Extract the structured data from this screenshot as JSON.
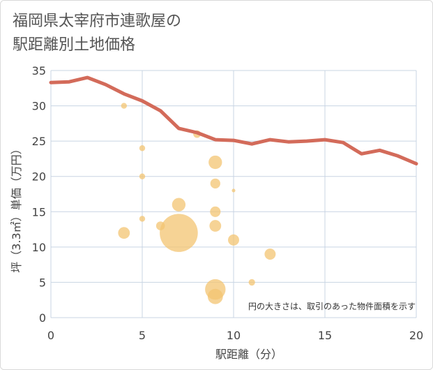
{
  "title_lines": [
    "福岡県太宰府市連歌屋の",
    "駅距離別土地価格"
  ],
  "note": "円の大きさは、取引のあった物件面積を示す",
  "colors": {
    "line": "#d36b5a",
    "bubble": "#f3c472",
    "grid": "#c8d4e3",
    "axis": "#444444"
  },
  "chart_data": {
    "type": "scatter",
    "xlabel": "駅距離（分）",
    "ylabel": "坪（3.3㎡）単価（万円）",
    "xlim": [
      0,
      20
    ],
    "ylim": [
      0,
      35
    ],
    "x_ticks": [
      0,
      5,
      10,
      15,
      20
    ],
    "y_ticks": [
      0,
      5,
      10,
      15,
      20,
      25,
      30,
      35
    ],
    "grid": true,
    "line": {
      "x": [
        0,
        1,
        2,
        3,
        4,
        5,
        6,
        7,
        8,
        9,
        10,
        11,
        12,
        13,
        14,
        15,
        16,
        17,
        18,
        19,
        20
      ],
      "y": [
        33.3,
        33.4,
        34.0,
        33.0,
        31.7,
        30.7,
        29.3,
        26.8,
        26.2,
        25.2,
        25.1,
        24.6,
        25.2,
        24.9,
        25.0,
        25.2,
        24.8,
        23.2,
        23.7,
        22.9,
        21.8
      ]
    },
    "bubbles": [
      {
        "x": 4,
        "y": 30,
        "size": 1.0
      },
      {
        "x": 4,
        "y": 12,
        "size": 2.0
      },
      {
        "x": 5,
        "y": 24,
        "size": 1.0
      },
      {
        "x": 5,
        "y": 20,
        "size": 1.0
      },
      {
        "x": 5,
        "y": 14,
        "size": 1.0
      },
      {
        "x": 6,
        "y": 13,
        "size": 1.5
      },
      {
        "x": 7,
        "y": 16,
        "size": 2.3
      },
      {
        "x": 7,
        "y": 12,
        "size": 6.5
      },
      {
        "x": 8,
        "y": 26,
        "size": 1.3
      },
      {
        "x": 9,
        "y": 22,
        "size": 2.3
      },
      {
        "x": 9,
        "y": 19,
        "size": 1.7
      },
      {
        "x": 9,
        "y": 15,
        "size": 1.8
      },
      {
        "x": 9,
        "y": 13,
        "size": 2.0
      },
      {
        "x": 9,
        "y": 4,
        "size": 3.5
      },
      {
        "x": 9,
        "y": 3,
        "size": 2.6
      },
      {
        "x": 10,
        "y": 18,
        "size": 0.6
      },
      {
        "x": 10,
        "y": 11,
        "size": 1.9
      },
      {
        "x": 11,
        "y": 5,
        "size": 1.1
      },
      {
        "x": 12,
        "y": 9,
        "size": 1.9
      }
    ]
  }
}
